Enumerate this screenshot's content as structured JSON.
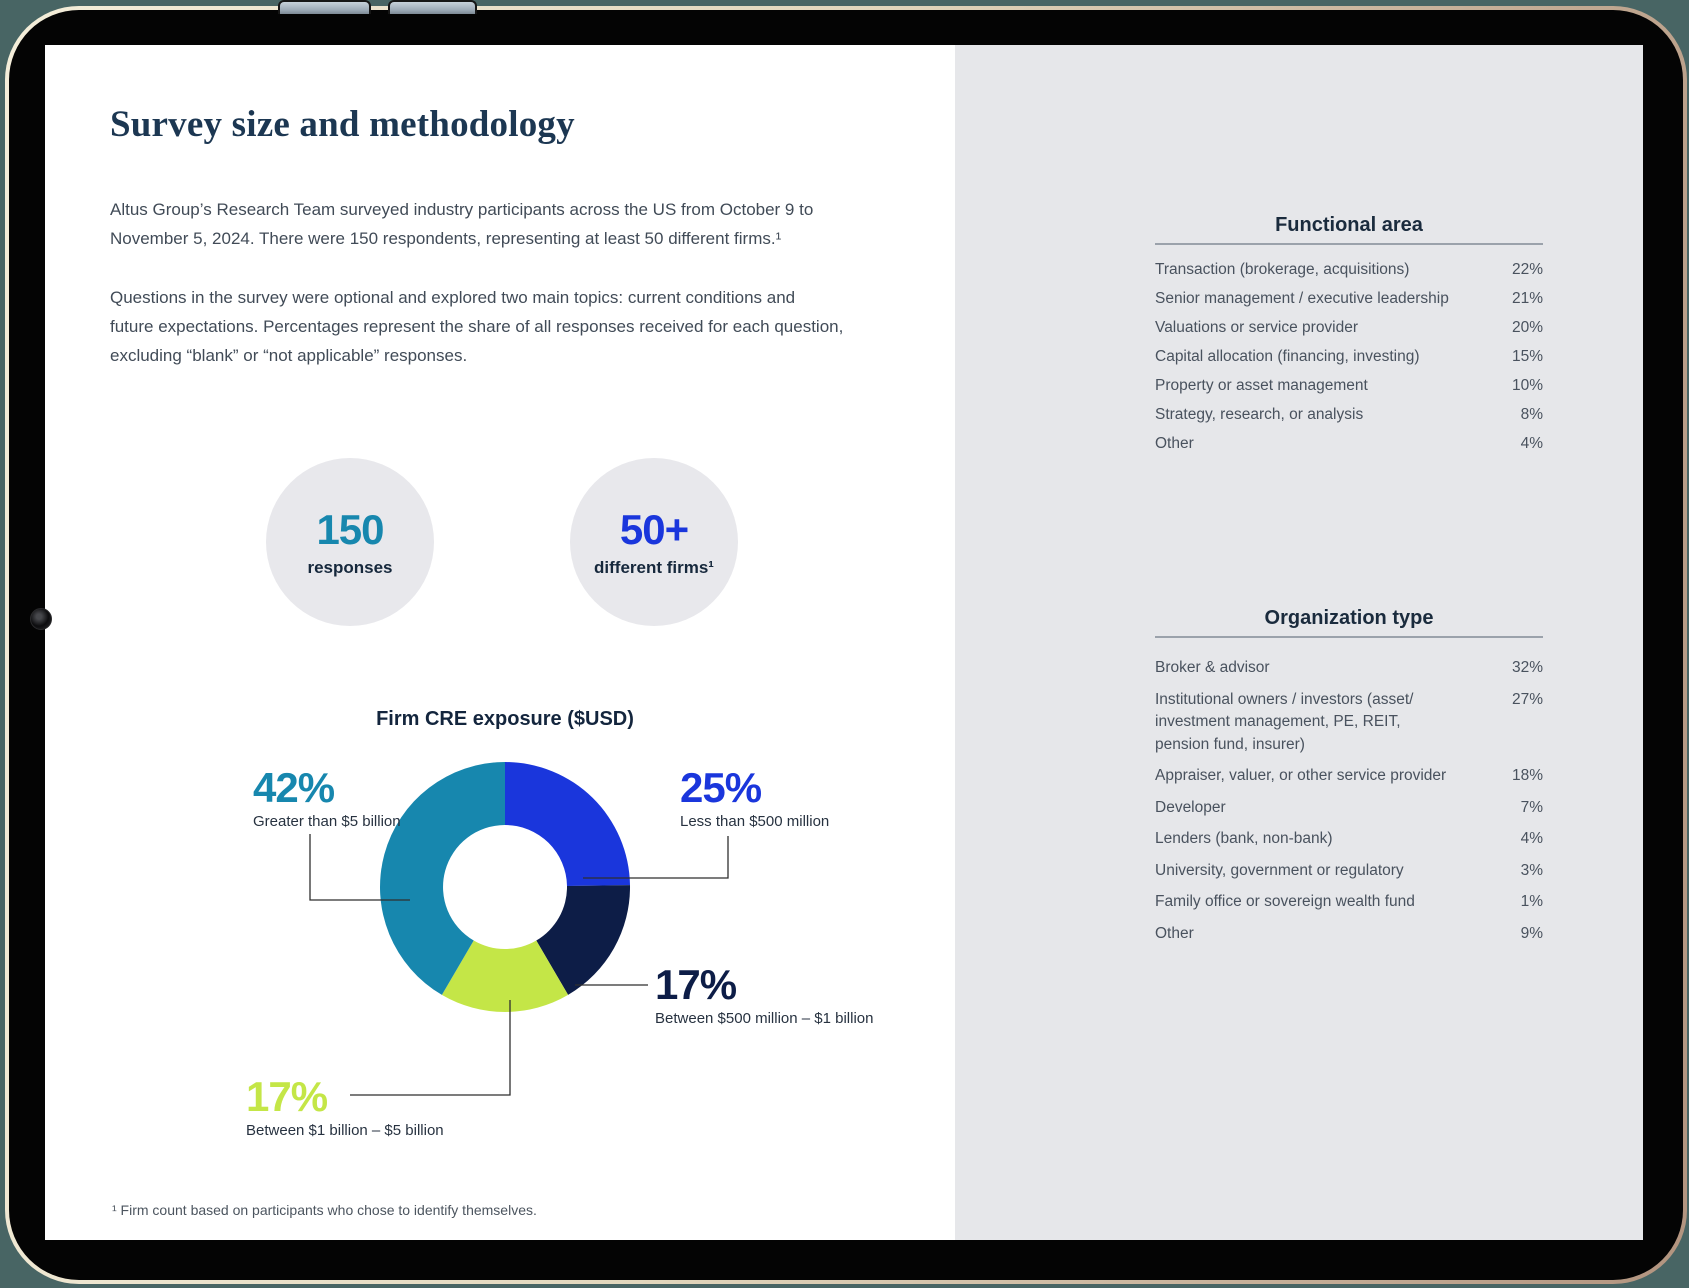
{
  "page": {
    "title": "Survey size and methodology",
    "intro": "Altus Group’s Research Team surveyed industry participants across the US from October 9 to\nNovember 5, 2024. There were 150 respondents, representing at least 50 different firms.¹",
    "methodology": "Questions in the survey were optional and explored two main topics: current conditions and\nfuture expectations. Percentages represent the share of all responses received for each question,\nexcluding “blank” or “not applicable” responses.",
    "footnote": "¹ Firm count based on participants who chose to identify themselves."
  },
  "stats": [
    {
      "value": "150",
      "label": "responses",
      "color": "#1787ae"
    },
    {
      "value": "50+",
      "label": "different firms¹",
      "color": "#1a36dc"
    }
  ],
  "chart_data": {
    "type": "pie",
    "subtype": "donut",
    "title": "Firm CRE exposure ($USD)",
    "start_angle_deg": 0,
    "direction": "clockwise",
    "segments": [
      {
        "label": "Less than $500 million",
        "value": 25,
        "pct_label": "25%",
        "color": "#1a36dc"
      },
      {
        "label": "Between $500 million – $1 billion",
        "value": 17,
        "pct_label": "17%",
        "color": "#0d1d47"
      },
      {
        "label": "Between $1 billion – $5 billion",
        "value": 17,
        "pct_label": "17%",
        "color": "#c4e647"
      },
      {
        "label": "Greater than $5 billion",
        "value": 42,
        "pct_label": "42%",
        "color": "#1787ae"
      }
    ]
  },
  "sidebar": {
    "tables": [
      {
        "title": "Functional area",
        "rows": [
          {
            "label": "Transaction (brokerage, acquisitions)",
            "value": "22%"
          },
          {
            "label": "Senior management / executive leadership",
            "value": "21%"
          },
          {
            "label": "Valuations or service provider",
            "value": "20%"
          },
          {
            "label": "Capital allocation (financing, investing)",
            "value": "15%"
          },
          {
            "label": "Property or asset management",
            "value": "10%"
          },
          {
            "label": "Strategy, research, or analysis",
            "value": "8%"
          },
          {
            "label": "Other",
            "value": "4%"
          }
        ]
      },
      {
        "title": "Organization type",
        "rows": [
          {
            "label": "Broker & advisor",
            "value": "32%"
          },
          {
            "label": "Institutional owners / investors (asset/\ninvestment management, PE, REIT,\npension fund, insurer)",
            "value": "27%"
          },
          {
            "label": "Appraiser, valuer, or other service provider",
            "value": "18%"
          },
          {
            "label": "Developer",
            "value": "7%"
          },
          {
            "label": "Lenders (bank, non-bank)",
            "value": "4%"
          },
          {
            "label": "University, government or regulatory",
            "value": "3%"
          },
          {
            "label": "Family office or sovereign wealth fund",
            "value": "1%"
          },
          {
            "label": "Other",
            "value": "9%"
          }
        ]
      }
    ]
  }
}
